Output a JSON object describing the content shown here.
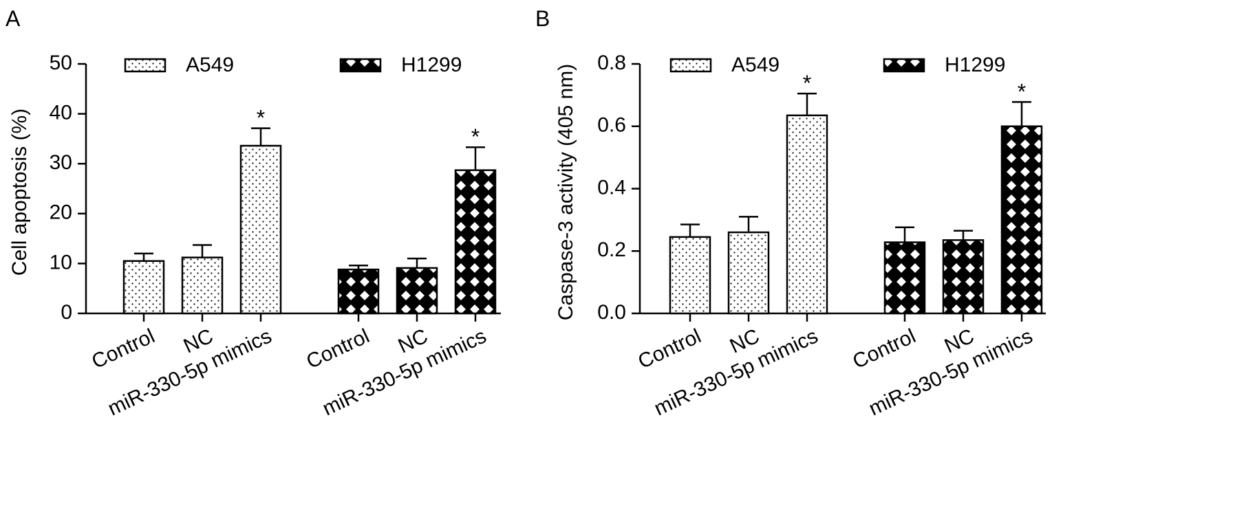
{
  "chart_data": [
    {
      "type": "bar",
      "panel_label": "A",
      "ylabel": "Cell apoptosis (%)",
      "categories": [
        "Control",
        "NC",
        "miR-330-5p mimics",
        "Control",
        "NC",
        "miR-330-5p mimics"
      ],
      "series": [
        {
          "name": "A549",
          "pattern": "dots",
          "values": [
            10.5,
            11.2,
            33.6,
            null,
            null,
            null
          ],
          "errors": [
            1.5,
            2.5,
            3.5,
            null,
            null,
            null
          ],
          "significance": [
            null,
            null,
            "*",
            null,
            null,
            null
          ]
        },
        {
          "name": "H1299",
          "pattern": "checker",
          "values": [
            null,
            null,
            null,
            8.8,
            9.1,
            28.7
          ],
          "errors": [
            null,
            null,
            null,
            0.8,
            1.9,
            4.6
          ],
          "significance": [
            null,
            null,
            null,
            null,
            null,
            "*"
          ]
        }
      ],
      "ylim": [
        0,
        50
      ],
      "yticks": [
        0,
        10,
        20,
        30,
        40,
        50
      ],
      "grid": false,
      "legend": "top"
    },
    {
      "type": "bar",
      "panel_label": "B",
      "ylabel": "Caspase-3 activity (405 nm)",
      "categories": [
        "Control",
        "NC",
        "miR-330-5p mimics",
        "Control",
        "NC",
        "miR-330-5p mimics"
      ],
      "series": [
        {
          "name": "A549",
          "pattern": "dots",
          "values": [
            0.245,
            0.26,
            0.635,
            null,
            null,
            null
          ],
          "errors": [
            0.04,
            0.05,
            0.07,
            null,
            null,
            null
          ],
          "significance": [
            null,
            null,
            "*",
            null,
            null,
            null
          ]
        },
        {
          "name": "H1299",
          "pattern": "checker",
          "values": [
            null,
            null,
            null,
            0.228,
            0.235,
            0.6
          ],
          "errors": [
            null,
            null,
            null,
            0.048,
            0.03,
            0.078
          ],
          "significance": [
            null,
            null,
            null,
            null,
            null,
            "*"
          ]
        }
      ],
      "ylim": [
        0,
        0.8
      ],
      "yticks": [
        {
          "value": 0,
          "label": "0.0"
        },
        0.2,
        0.4,
        0.6,
        0.8
      ],
      "grid": false,
      "legend": "top"
    }
  ]
}
